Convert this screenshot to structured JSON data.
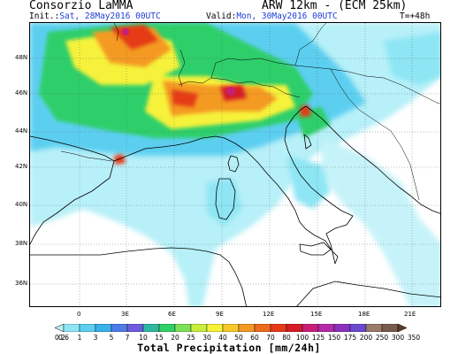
{
  "header": {
    "source": "Consorzio LaMMA",
    "model": "ARW 12km - (ECM 25km)",
    "init_label": "Init.:",
    "init_value": "Sat, 28May2016 00UTC",
    "valid_label": "Valid:",
    "valid_value": "Mon, 30May2016 00UTC",
    "forecast_step": "T=+48h"
  },
  "map": {
    "latitude_labels": [
      "48N",
      "46N",
      "44N",
      "42N",
      "40N",
      "38N",
      "36N"
    ],
    "longitude_labels": [
      "0",
      "3E",
      "6E",
      "9E",
      "12E",
      "15E",
      "18E",
      "21E"
    ]
  },
  "colorbar": {
    "title": "Total Precipitation [mm/24h]",
    "levels": [
      "0.2",
      "0.6",
      "1",
      "3",
      "5",
      "7",
      "10",
      "15",
      "20",
      "25",
      "30",
      "40",
      "50",
      "60",
      "70",
      "80",
      "100",
      "125",
      "150",
      "175",
      "200",
      "250",
      "300",
      "350"
    ],
    "colors": [
      "#b7f0f8",
      "#8ee6f4",
      "#5ccff0",
      "#3ab0ec",
      "#4f7ce8",
      "#6b5ce0",
      "#2fb8a0",
      "#2fcf6a",
      "#7fe05a",
      "#c9ee3c",
      "#f6f23a",
      "#f7c82c",
      "#f49a24",
      "#ee6a1c",
      "#e53a18",
      "#d61c28",
      "#c81e7a",
      "#b42aa8",
      "#8c30c0",
      "#6a4ad0",
      "#9a7a6a",
      "#7a5a4a",
      "#5a3c2c"
    ]
  }
}
